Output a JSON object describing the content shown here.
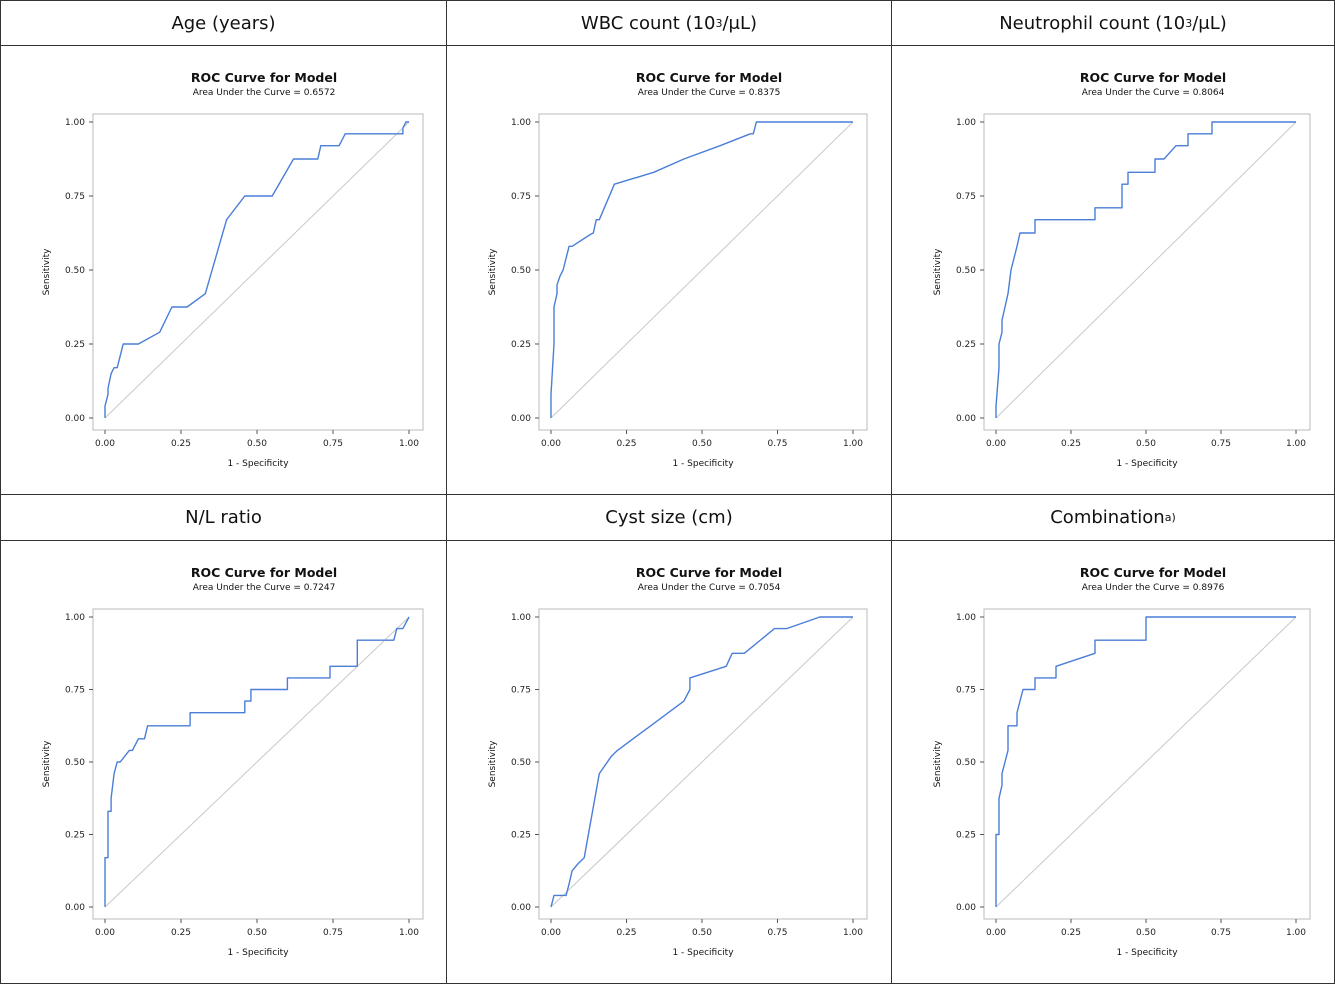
{
  "chart_data": [
    {
      "header": "Age (years)",
      "header_sup": "",
      "header_suffix": "",
      "type": "line",
      "title": "ROC Curve for Model",
      "subtitle": "Area Under the Curve = 0.6572",
      "xlabel": "1 - Specificity",
      "ylabel": "Sensitivity",
      "xlim": [
        0,
        1
      ],
      "ylim": [
        0,
        1
      ],
      "xticks": [
        "0.00",
        "0.25",
        "0.50",
        "0.75",
        "1.00"
      ],
      "yticks": [
        "0.00",
        "0.25",
        "0.50",
        "0.75",
        "1.00"
      ],
      "reference_line": true,
      "series": [
        {
          "x": [
            0,
            0,
            0.01,
            0.01,
            0.02,
            0.03,
            0.04,
            0.05,
            0.06,
            0.11,
            0.18,
            0.22,
            0.27,
            0.33,
            0.4,
            0.46,
            0.55,
            0.62,
            0.7,
            0.71,
            0.77,
            0.79,
            0.98,
            0.98,
            0.99,
            1.0
          ],
          "y": [
            0,
            0.04,
            0.08,
            0.1,
            0.15,
            0.17,
            0.17,
            0.21,
            0.25,
            0.25,
            0.29,
            0.375,
            0.375,
            0.42,
            0.67,
            0.75,
            0.75,
            0.875,
            0.875,
            0.92,
            0.92,
            0.96,
            0.96,
            0.98,
            1.0,
            1.0
          ]
        }
      ],
      "colors": {
        "curve": "#4a7ed8",
        "reference": "#c8c8c8"
      }
    },
    {
      "header": "WBC count (10",
      "header_sup": "3",
      "header_suffix": "/μL)",
      "type": "line",
      "title": "ROC Curve for Model",
      "subtitle": "Area Under the Curve = 0.8375",
      "xlabel": "1 - Specificity",
      "ylabel": "Sensitivity",
      "xlim": [
        0,
        1
      ],
      "ylim": [
        0,
        1
      ],
      "xticks": [
        "0.00",
        "0.25",
        "0.50",
        "0.75",
        "1.00"
      ],
      "yticks": [
        "0.00",
        "0.25",
        "0.50",
        "0.75",
        "1.00"
      ],
      "reference_line": true,
      "series": [
        {
          "x": [
            0,
            0,
            0.01,
            0.01,
            0.02,
            0.02,
            0.03,
            0.04,
            0.05,
            0.06,
            0.06,
            0.07,
            0.13,
            0.14,
            0.15,
            0.16,
            0.21,
            0.21,
            0.34,
            0.34,
            0.44,
            0.44,
            0.56,
            0.56,
            0.66,
            0.67,
            0.68,
            0.68,
            1.0
          ],
          "y": [
            0,
            0.08,
            0.25,
            0.375,
            0.42,
            0.45,
            0.48,
            0.5,
            0.54,
            0.58,
            0.58,
            0.58,
            0.62,
            0.625,
            0.67,
            0.67,
            0.79,
            0.79,
            0.83,
            0.83,
            0.875,
            0.875,
            0.92,
            0.92,
            0.96,
            0.96,
            1.0,
            1.0,
            1.0
          ]
        }
      ],
      "colors": {
        "curve": "#4a7ed8",
        "reference": "#c8c8c8"
      }
    },
    {
      "header": "Neutrophil count (10",
      "header_sup": "3",
      "header_suffix": "/μL)",
      "type": "line",
      "title": "ROC Curve for Model",
      "subtitle": "Area Under the Curve = 0.8064",
      "xlabel": "1 - Specificity",
      "ylabel": "Sensitivity",
      "xlim": [
        0,
        1
      ],
      "ylim": [
        0,
        1
      ],
      "xticks": [
        "0.00",
        "0.25",
        "0.50",
        "0.75",
        "1.00"
      ],
      "yticks": [
        "0.00",
        "0.25",
        "0.50",
        "0.75",
        "1.00"
      ],
      "reference_line": true,
      "series": [
        {
          "x": [
            0,
            0,
            0.01,
            0.01,
            0.02,
            0.02,
            0.03,
            0.04,
            0.05,
            0.06,
            0.07,
            0.08,
            0.13,
            0.13,
            0.33,
            0.33,
            0.42,
            0.42,
            0.44,
            0.44,
            0.53,
            0.53,
            0.56,
            0.56,
            0.6,
            0.64,
            0.64,
            0.72,
            0.72,
            1.0
          ],
          "y": [
            0,
            0.04,
            0.17,
            0.25,
            0.29,
            0.33,
            0.375,
            0.42,
            0.5,
            0.54,
            0.58,
            0.625,
            0.625,
            0.67,
            0.67,
            0.71,
            0.71,
            0.79,
            0.79,
            0.83,
            0.83,
            0.875,
            0.875,
            0.875,
            0.92,
            0.92,
            0.96,
            0.96,
            1.0,
            1.0
          ]
        }
      ],
      "colors": {
        "curve": "#4a7ed8",
        "reference": "#c8c8c8"
      }
    },
    {
      "header": "N/L ratio",
      "header_sup": "",
      "header_suffix": "",
      "type": "line",
      "title": "ROC Curve for Model",
      "subtitle": "Area Under the Curve = 0.7247",
      "xlabel": "1 - Specificity",
      "ylabel": "Sensitivity",
      "xlim": [
        0,
        1
      ],
      "ylim": [
        0,
        1
      ],
      "xticks": [
        "0.00",
        "0.25",
        "0.50",
        "0.75",
        "1.00"
      ],
      "yticks": [
        "0.00",
        "0.25",
        "0.50",
        "0.75",
        "1.00"
      ],
      "reference_line": true,
      "series": [
        {
          "x": [
            0,
            0,
            0.01,
            0.01,
            0.02,
            0.02,
            0.03,
            0.04,
            0.05,
            0.08,
            0.09,
            0.11,
            0.13,
            0.14,
            0.28,
            0.28,
            0.46,
            0.46,
            0.48,
            0.48,
            0.6,
            0.6,
            0.74,
            0.74,
            0.83,
            0.83,
            0.95,
            0.96,
            0.98,
            1.0
          ],
          "y": [
            0,
            0.17,
            0.17,
            0.33,
            0.33,
            0.375,
            0.46,
            0.5,
            0.5,
            0.54,
            0.54,
            0.58,
            0.58,
            0.625,
            0.625,
            0.67,
            0.67,
            0.71,
            0.71,
            0.75,
            0.75,
            0.79,
            0.79,
            0.83,
            0.83,
            0.92,
            0.92,
            0.96,
            0.96,
            1.0
          ]
        }
      ],
      "colors": {
        "curve": "#4a7ed8",
        "reference": "#c8c8c8"
      }
    },
    {
      "header": "Cyst size (cm)",
      "header_sup": "",
      "header_suffix": "",
      "type": "line",
      "title": "ROC Curve for Model",
      "subtitle": "Area Under the Curve = 0.7054",
      "xlabel": "1 - Specificity",
      "ylabel": "Sensitivity",
      "xlim": [
        0,
        1
      ],
      "ylim": [
        0,
        1
      ],
      "xticks": [
        "0.00",
        "0.25",
        "0.50",
        "0.75",
        "1.00"
      ],
      "yticks": [
        "0.00",
        "0.25",
        "0.50",
        "0.75",
        "1.00"
      ],
      "reference_line": true,
      "series": [
        {
          "x": [
            0,
            0.01,
            0.01,
            0.05,
            0.06,
            0.07,
            0.09,
            0.11,
            0.16,
            0.2,
            0.22,
            0.33,
            0.44,
            0.46,
            0.46,
            0.58,
            0.6,
            0.64,
            0.74,
            0.78,
            0.89,
            1.0
          ],
          "y": [
            0,
            0.04,
            0.04,
            0.04,
            0.08,
            0.125,
            0.15,
            0.17,
            0.46,
            0.52,
            0.54,
            0.625,
            0.71,
            0.75,
            0.79,
            0.83,
            0.875,
            0.875,
            0.96,
            0.96,
            1.0,
            1.0
          ]
        }
      ],
      "colors": {
        "curve": "#4a7ed8",
        "reference": "#c8c8c8"
      }
    },
    {
      "header": "Combination",
      "header_sup": "a)",
      "header_suffix": "",
      "type": "line",
      "title": "ROC Curve for Model",
      "subtitle": "Area Under the Curve = 0.8976",
      "xlabel": "1 - Specificity",
      "ylabel": "Sensitivity",
      "xlim": [
        0,
        1
      ],
      "ylim": [
        0,
        1
      ],
      "xticks": [
        "0.00",
        "0.25",
        "0.50",
        "0.75",
        "1.00"
      ],
      "yticks": [
        "0.00",
        "0.25",
        "0.50",
        "0.75",
        "1.00"
      ],
      "reference_line": true,
      "series": [
        {
          "x": [
            0,
            0,
            0.01,
            0.01,
            0.02,
            0.02,
            0.03,
            0.04,
            0.04,
            0.07,
            0.07,
            0.08,
            0.09,
            0.13,
            0.13,
            0.2,
            0.2,
            0.33,
            0.33,
            0.5,
            0.5,
            1.0
          ],
          "y": [
            0,
            0.25,
            0.25,
            0.375,
            0.42,
            0.46,
            0.5,
            0.54,
            0.625,
            0.625,
            0.67,
            0.71,
            0.75,
            0.75,
            0.79,
            0.79,
            0.83,
            0.875,
            0.92,
            0.92,
            1.0,
            1.0
          ]
        }
      ],
      "colors": {
        "curve": "#4a7ed8",
        "reference": "#c8c8c8"
      }
    }
  ]
}
